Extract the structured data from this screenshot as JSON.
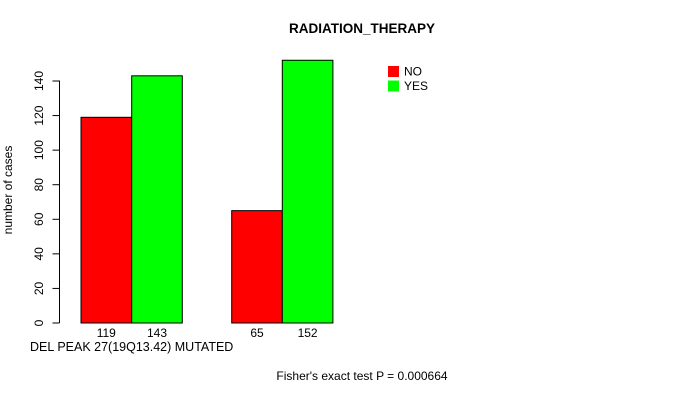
{
  "chart_data": {
    "type": "bar",
    "title": "RADIATION_THERAPY",
    "xlabel": "DEL PEAK 27(19Q13.42) MUTATED",
    "ylabel": "number of cases",
    "footer": "Fisher's exact test P = 0.000664",
    "categories": [
      "",
      ""
    ],
    "series": [
      {
        "name": "NO",
        "color": "#FF0000",
        "values": [
          119,
          65
        ]
      },
      {
        "name": "YES",
        "color": "#00FF00",
        "values": [
          143,
          152
        ]
      }
    ],
    "bar_value_labels": [
      "119",
      "143",
      "65",
      "152"
    ],
    "yticks": [
      0,
      20,
      40,
      60,
      80,
      100,
      120,
      140
    ],
    "ylim": [
      0,
      140
    ],
    "grid": false,
    "legend_position": "top-right",
    "bar_border_color": "#000000",
    "background_color": "#FFFFFF"
  }
}
